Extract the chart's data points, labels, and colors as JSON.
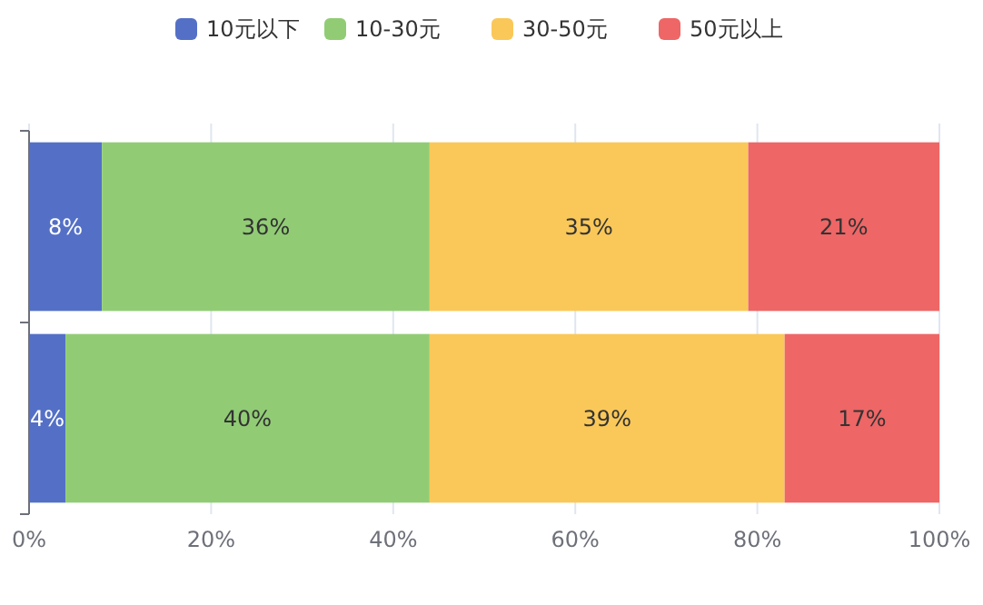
{
  "chart_data": {
    "type": "bar",
    "orientation": "horizontal",
    "stacked": true,
    "categories": [
      null,
      null
    ],
    "series": [
      {
        "name": "10元以下",
        "color": "#5470c6",
        "values": [
          8,
          4
        ],
        "value_labels": [
          "8%",
          "4%"
        ]
      },
      {
        "name": "10-30元",
        "color": "#91cc75",
        "values": [
          36,
          40
        ],
        "value_labels": [
          "36%",
          "40%"
        ]
      },
      {
        "name": "30-50元",
        "color": "#fac858",
        "values": [
          35,
          39
        ],
        "value_labels": [
          "35%",
          "39%"
        ]
      },
      {
        "name": "50元以上",
        "color": "#ee6666",
        "values": [
          21,
          17
        ],
        "value_labels": [
          "21%",
          "17%"
        ]
      }
    ],
    "xlim": [
      0,
      100
    ],
    "xticks": [
      {
        "value": 0,
        "label": "0%"
      },
      {
        "value": 20,
        "label": "20%"
      },
      {
        "value": 40,
        "label": "40%"
      },
      {
        "value": 60,
        "label": "60%"
      },
      {
        "value": 80,
        "label": "80%"
      },
      {
        "value": 100,
        "label": "100%"
      }
    ],
    "grid": "x",
    "legend": "top"
  }
}
